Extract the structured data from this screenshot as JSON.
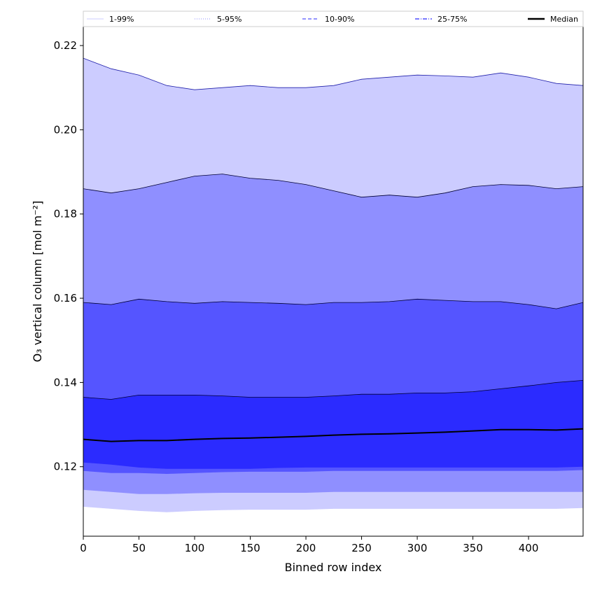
{
  "chart_data": {
    "type": "area",
    "title": "",
    "xlabel": "Binned row index",
    "ylabel": "O₃ vertical column [mol m⁻²]",
    "xlim": [
      0,
      449
    ],
    "ylim": [
      0.1035,
      0.2245
    ],
    "xticks": [
      0,
      50,
      100,
      150,
      200,
      250,
      300,
      350,
      400
    ],
    "yticks": [
      0.12,
      0.14,
      0.16,
      0.18,
      0.2,
      0.22
    ],
    "ytick_labels": [
      "0.12",
      "0.14",
      "0.16",
      "0.18",
      "0.20",
      "0.22"
    ],
    "grid": false,
    "legend_position": "top",
    "x": [
      0,
      25,
      50,
      75,
      100,
      125,
      150,
      175,
      200,
      225,
      250,
      275,
      300,
      325,
      350,
      375,
      400,
      425,
      449
    ],
    "bands": [
      {
        "name": "1-99%",
        "color": "#ccccff",
        "lower": [
          0.1105,
          0.11,
          0.1095,
          0.1092,
          0.1095,
          0.1097,
          0.1098,
          0.1098,
          0.1098,
          0.11,
          0.11,
          0.11,
          0.11,
          0.11,
          0.11,
          0.11,
          0.11,
          0.11,
          0.1102
        ],
        "upper": [
          0.217,
          0.2145,
          0.213,
          0.2105,
          0.2095,
          0.21,
          0.2105,
          0.21,
          0.21,
          0.2105,
          0.212,
          0.2125,
          0.213,
          0.2128,
          0.2125,
          0.2135,
          0.2125,
          0.211,
          0.2105
        ]
      },
      {
        "name": "5-95%",
        "color": "#8f8fff",
        "lower": [
          0.1145,
          0.114,
          0.1135,
          0.1135,
          0.1137,
          0.1138,
          0.1138,
          0.1138,
          0.1138,
          0.114,
          0.114,
          0.114,
          0.114,
          0.114,
          0.114,
          0.114,
          0.114,
          0.114,
          0.114
        ],
        "upper": [
          0.186,
          0.185,
          0.186,
          0.1875,
          0.189,
          0.1895,
          0.1885,
          0.188,
          0.187,
          0.1855,
          0.184,
          0.1845,
          0.184,
          0.185,
          0.1865,
          0.187,
          0.1868,
          0.186,
          0.1865
        ]
      },
      {
        "name": "10-90%",
        "color": "#5555ff",
        "lower": [
          0.119,
          0.1185,
          0.1185,
          0.1183,
          0.1185,
          0.1187,
          0.1188,
          0.1188,
          0.1188,
          0.119,
          0.119,
          0.119,
          0.119,
          0.119,
          0.119,
          0.119,
          0.119,
          0.119,
          0.1192
        ],
        "upper": [
          0.159,
          0.1585,
          0.1598,
          0.1592,
          0.1588,
          0.1592,
          0.159,
          0.1588,
          0.1585,
          0.159,
          0.159,
          0.1592,
          0.1598,
          0.1595,
          0.1592,
          0.1592,
          0.1585,
          0.1575,
          0.159
        ]
      },
      {
        "name": "25-75%",
        "color": "#2b2bff",
        "lower": [
          0.121,
          0.1205,
          0.1198,
          0.1195,
          0.1195,
          0.1195,
          0.1195,
          0.1197,
          0.1198,
          0.1198,
          0.1198,
          0.1198,
          0.1198,
          0.1198,
          0.1198,
          0.1198,
          0.1198,
          0.1198,
          0.12
        ],
        "upper": [
          0.1365,
          0.136,
          0.137,
          0.137,
          0.137,
          0.1368,
          0.1365,
          0.1365,
          0.1365,
          0.1368,
          0.1372,
          0.1372,
          0.1375,
          0.1375,
          0.1378,
          0.1385,
          0.1392,
          0.14,
          0.1405
        ]
      }
    ],
    "series": [
      {
        "name": "Median",
        "color": "#000000",
        "values": [
          0.1265,
          0.126,
          0.1262,
          0.1262,
          0.1265,
          0.1267,
          0.1268,
          0.127,
          0.1272,
          0.1275,
          0.1277,
          0.1278,
          0.128,
          0.1282,
          0.1285,
          0.1288,
          0.1288,
          0.1287,
          0.129
        ]
      }
    ],
    "legend": [
      {
        "label": "1-99%",
        "color": "#ccccff",
        "style": "solid-thin"
      },
      {
        "label": "5-95%",
        "color": "#8f8fff",
        "style": "dotted"
      },
      {
        "label": "10-90%",
        "color": "#5555ff",
        "style": "dashed"
      },
      {
        "label": "25-75%",
        "color": "#2b2bff",
        "style": "dashdot"
      },
      {
        "label": "Median",
        "color": "#000000",
        "style": "solid-thick"
      }
    ]
  }
}
